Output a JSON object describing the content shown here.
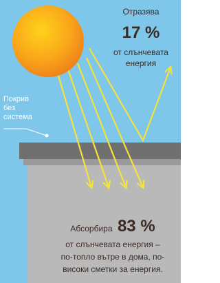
{
  "reflected": {
    "label": "Отразява",
    "value": "17 %",
    "description": [
      "от слънчевата",
      "енергия"
    ]
  },
  "roof_label": [
    "Покрив",
    "без",
    "система"
  ],
  "absorbed": {
    "label": "Абсорбира",
    "value": "83 %",
    "description": [
      "от слънчевата енергия –",
      "по-топло вътре в дома, по-",
      "високи сметки за енергия."
    ]
  }
}
